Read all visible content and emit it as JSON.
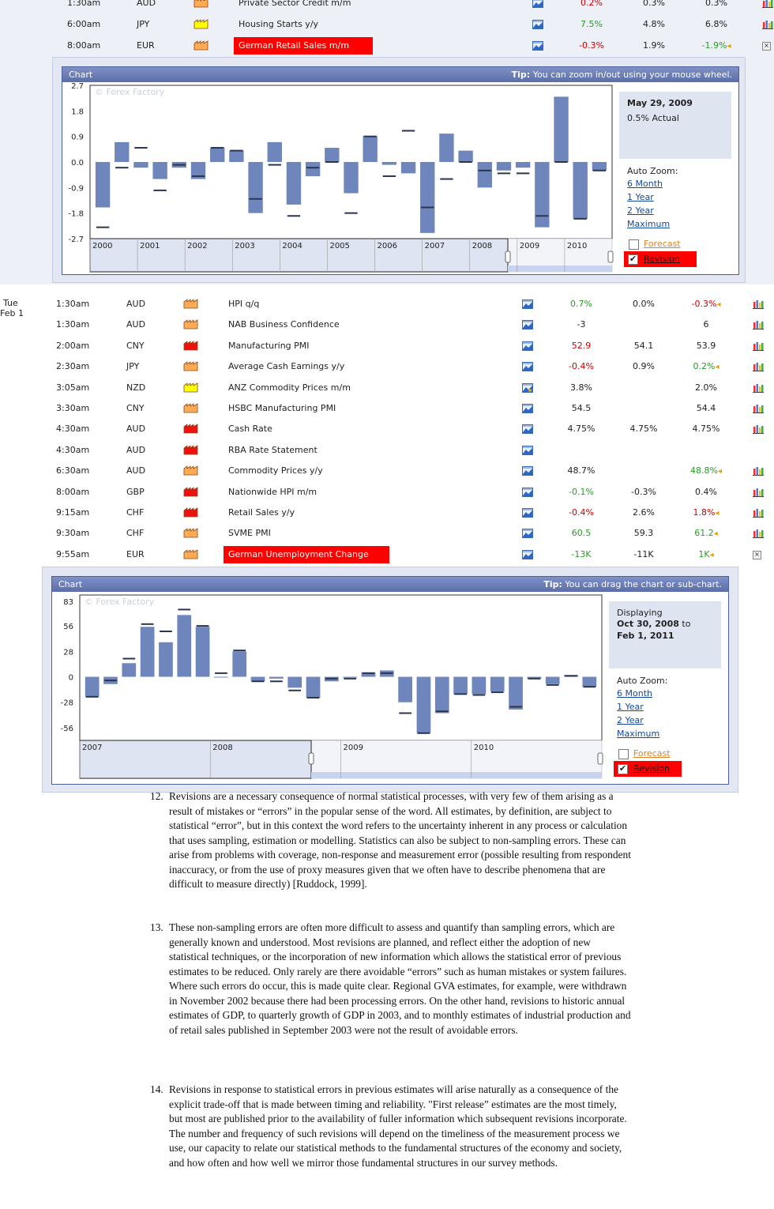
{
  "rows_top": [
    {
      "time": "1:30am",
      "cur": "AUD",
      "impact": "orange",
      "event": "Private Sector Credit m/m",
      "actual": "0.2%",
      "actual_color": "red",
      "forecast": "0.3%",
      "previous": "0.3%",
      "prev_color": "black",
      "rev": false,
      "y": -7,
      "graph": "bar"
    },
    {
      "time": "6:00am",
      "cur": "JPY",
      "impact": "yellow",
      "event": "Housing Starts y/y",
      "actual": "7.5%",
      "actual_color": "green",
      "forecast": "4.8%",
      "previous": "6.8%",
      "prev_color": "black",
      "rev": false,
      "y": 20,
      "graph": "bar"
    },
    {
      "time": "8:00am",
      "cur": "EUR",
      "impact": "orange",
      "event": "German Retail Sales m/m",
      "highlight": true,
      "actual": "-0.3%",
      "actual_color": "red",
      "forecast": "1.9%",
      "previous": "-1.9%",
      "prev_color": "green",
      "rev": true,
      "y": 47,
      "graph": "close"
    }
  ],
  "day": {
    "dow": "Tue",
    "date": "Feb 1"
  },
  "rows_mid": [
    {
      "time": "1:30am",
      "cur": "AUD",
      "impact": "orange",
      "event": "HPI q/q",
      "actual": "0.7%",
      "actual_color": "green",
      "forecast": "0.0%",
      "previous": "-0.3%",
      "prev_color": "red",
      "rev": true
    },
    {
      "time": "1:30am",
      "cur": "AUD",
      "impact": "orange",
      "event": "NAB Business Confidence",
      "actual": "-3",
      "actual_color": "black",
      "forecast": "",
      "previous": "6",
      "prev_color": "black",
      "rev": false
    },
    {
      "time": "2:00am",
      "cur": "CNY",
      "impact": "red",
      "event": "Manufacturing PMI",
      "actual": "52.9",
      "actual_color": "red",
      "forecast": "54.1",
      "previous": "53.9",
      "prev_color": "black",
      "rev": false
    },
    {
      "time": "2:30am",
      "cur": "JPY",
      "impact": "orange",
      "event": "Average Cash Earnings y/y",
      "actual": "-0.4%",
      "actual_color": "red",
      "forecast": "0.9%",
      "previous": "0.2%",
      "prev_color": "green",
      "rev": true
    },
    {
      "time": "3:05am",
      "cur": "NZD",
      "impact": "yellow",
      "event": "ANZ Commodity Prices m/m",
      "actual": "3.8%",
      "actual_color": "black",
      "forecast": "",
      "previous": "2.0%",
      "prev_color": "black",
      "rev": false,
      "star": true
    },
    {
      "time": "3:30am",
      "cur": "CNY",
      "impact": "orange",
      "event": "HSBC Manufacturing PMI",
      "actual": "54.5",
      "actual_color": "black",
      "forecast": "",
      "previous": "54.4",
      "prev_color": "black",
      "rev": false
    },
    {
      "time": "4:30am",
      "cur": "AUD",
      "impact": "red",
      "event": "Cash Rate",
      "actual": "4.75%",
      "actual_color": "black",
      "forecast": "4.75%",
      "previous": "4.75%",
      "prev_color": "black",
      "rev": false
    },
    {
      "time": "4:30am",
      "cur": "AUD",
      "impact": "red",
      "event": "RBA Rate Statement",
      "actual": "",
      "actual_color": "black",
      "forecast": "",
      "previous": "",
      "prev_color": "black",
      "rev": false,
      "nograph": true
    },
    {
      "time": "6:30am",
      "cur": "AUD",
      "impact": "orange",
      "event": "Commodity Prices y/y",
      "actual": "48.7%",
      "actual_color": "black",
      "forecast": "",
      "previous": "48.8%",
      "prev_color": "green",
      "rev": true
    },
    {
      "time": "8:00am",
      "cur": "GBP",
      "impact": "red",
      "event": "Nationwide HPI m/m",
      "actual": "-0.1%",
      "actual_color": "green",
      "forecast": "-0.3%",
      "previous": "0.4%",
      "prev_color": "black",
      "rev": false
    },
    {
      "time": "9:15am",
      "cur": "CHF",
      "impact": "red",
      "event": "Retail Sales y/y",
      "actual": "-0.4%",
      "actual_color": "red",
      "forecast": "2.6%",
      "previous": "1.8%",
      "prev_color": "red",
      "rev": true
    },
    {
      "time": "9:30am",
      "cur": "CHF",
      "impact": "orange",
      "event": "SVME PMI",
      "actual": "60.5",
      "actual_color": "green",
      "forecast": "59.3",
      "previous": "61.2",
      "prev_color": "green",
      "rev": true
    },
    {
      "time": "9:55am",
      "cur": "EUR",
      "impact": "orange",
      "event": "German Unemployment Change",
      "highlight": true,
      "actual": "-13K",
      "actual_color": "green",
      "forecast": "-11K",
      "previous": "1K",
      "prev_color": "green",
      "rev": true,
      "close": true
    }
  ],
  "chart1": {
    "title": "Chart",
    "tip_bold": "Tip:",
    "tip": "You can zoom in/out using your mouse wheel.",
    "watermark": "© Forex Factory",
    "yticks": [
      "2.7",
      "1.8",
      "0.9",
      "0.0",
      "-0.9",
      "-1.8",
      "-2.7"
    ],
    "years": [
      "2000",
      "2001",
      "2002",
      "2003",
      "2004",
      "2005",
      "2006",
      "2007",
      "2008",
      "2009",
      "2010"
    ],
    "info_date": "May 29, 2009",
    "info_sub": "0.5% Actual",
    "auto_zoom": "Auto Zoom:",
    "z1": "6 Month",
    "z2": "1 Year",
    "z3": "2 Year",
    "z4": "Maximum",
    "forecast": "Forecast",
    "revision": "Revision"
  },
  "chart2": {
    "title": "Chart",
    "tip_bold": "Tip:",
    "tip": "You can drag the chart or sub-chart.",
    "watermark": "© Forex Factory",
    "yticks": [
      "83",
      "56",
      "28",
      "0",
      "-28",
      "-56"
    ],
    "years": [
      "2007",
      "2008",
      "2009",
      "2010"
    ],
    "info_l1": "Displaying",
    "info_d1": "Oct 30, 2008",
    "info_to": "to",
    "info_d2": "Feb 1, 2011",
    "auto_zoom": "Auto Zoom:",
    "z1": "6 Month",
    "z2": "1 Year",
    "z3": "2 Year",
    "z4": "Maximum",
    "forecast": "Forecast",
    "revision": "Revision"
  },
  "chart_data": [
    {
      "type": "bar",
      "title": "",
      "ylim": [
        -2.7,
        2.7
      ],
      "values": [
        -1.6,
        0.7,
        -0.2,
        -0.6,
        -0.2,
        -0.6,
        0.5,
        0.4,
        -1.8,
        0.7,
        -1.5,
        -0.5,
        0.5,
        -1.1,
        0.9,
        -0.1,
        -0.4,
        -2.5,
        1.0,
        0.4,
        -0.9,
        -0.3,
        -0.2,
        -2.3,
        2.3,
        -2.0,
        -0.3
      ],
      "markers": [
        -2.3,
        -0.2,
        0.5,
        -1.0,
        -0.1,
        -0.5,
        0.5,
        0.4,
        -1.3,
        -0.1,
        -1.9,
        -0.2,
        0.0,
        -1.8,
        0.9,
        -0.5,
        1.1,
        -1.6,
        -0.6,
        0.0,
        -0.3,
        -0.4,
        -0.4,
        -1.9,
        0.0,
        -2.0,
        -0.3
      ]
    },
    {
      "type": "bar",
      "title": "",
      "ylim": [
        -70,
        90
      ],
      "values": [
        -22,
        -8,
        15,
        55,
        38,
        68,
        55,
        0,
        28,
        -5,
        -2,
        -12,
        -23,
        -5,
        -1,
        5,
        7,
        -28,
        -62,
        -40,
        -19,
        -19,
        -16,
        -36,
        -2,
        -8,
        2,
        -11
      ],
      "markers": [
        -22,
        -4,
        20,
        58,
        50,
        74,
        56,
        4,
        29,
        -5,
        -5,
        -15,
        -23,
        -2,
        -2,
        4,
        4,
        -40,
        -62,
        -38,
        -19,
        -20,
        -17,
        -33,
        -2,
        -9,
        1,
        -11
      ]
    }
  ],
  "paragraphs": [
    {
      "num": "12.",
      "text": "Revisions are a necessary consequence of normal statistical processes, with very few of them arising as a result of mistakes or “errors” in the popular sense of the word. All estimates, by definition, are subject to statistical “error”, but in this context the word refers to the uncertainty inherent in any process or calculation that uses sampling, estimation or modelling. Statistics can also be subject to non-sampling errors. These can arise from problems with coverage, non-response and measurement error (possible resulting from respondent inaccuracy, or from the use of proxy measures given that we often have to describe phenomena that are difficult to measure directly) [Ruddock, 1999]."
    },
    {
      "num": "13.",
      "text": "These non-sampling errors are often more difficult to assess and quantify than sampling errors, which are generally known and understood. Most revisions are planned, and reflect either the adoption of new statistical techniques, or the incorporation of new information which allows the statistical error of previous estimates to be reduced. Only rarely are there avoidable “errors” such as human mistakes or system failures. Where such errors do occur, this is made quite clear. Regional GVA estimates, for example, were withdrawn in November 2002 because there had been processing errors. On the other hand, revisions to historic annual estimates of GDP, to quarterly growth of GDP in 2003, and to monthly estimates of industrial production and of retail sales published in September 2003 were not the result of avoidable errors."
    },
    {
      "num": "14.",
      "text": "Revisions in response to statistical errors in previous estimates will arise naturally as a consequence of the explicit trade-off that is made between timing and reliability. \"First release” estimates are the most timely, but most are published prior to the availability of fuller information which subsequent revisions incorporate. The number and frequency of such revisions will depend on the timeliness of the measurement process we use, our capacity to relate our statistical methods to the fundamental structures of the economy and society, and how often and how well we mirror those fundamental structures in our survey methods."
    }
  ]
}
